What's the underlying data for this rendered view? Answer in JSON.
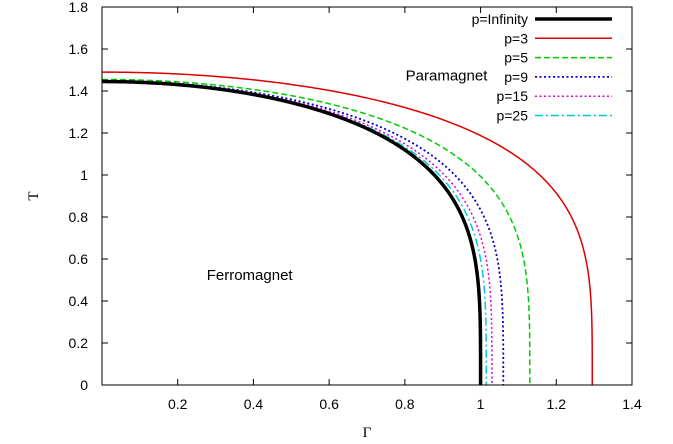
{
  "chart_data": {
    "type": "line",
    "xlabel": "Γ",
    "ylabel": "T",
    "xlim": [
      0,
      1.4
    ],
    "ylim": [
      0,
      1.8
    ],
    "x_ticks": [
      "0.2",
      "0.4",
      "0.6",
      "0.8",
      "1",
      "1.2",
      "1.4"
    ],
    "x_tick_values": [
      0.2,
      0.4,
      0.6,
      0.8,
      1.0,
      1.2,
      1.4
    ],
    "y_ticks": [
      "0",
      "0.2",
      "0.4",
      "0.6",
      "0.8",
      "1",
      "1.2",
      "1.4",
      "1.6",
      "1.8"
    ],
    "y_tick_values": [
      0,
      0.2,
      0.4,
      0.6,
      0.8,
      1.0,
      1.2,
      1.4,
      1.6,
      1.8
    ],
    "grid": false,
    "legend_position": "top-right",
    "annotations": [
      {
        "text": "Paramagnet",
        "x": 0.91,
        "y": 1.45
      },
      {
        "text": "Ferromagnet",
        "x": 0.39,
        "y": 0.5
      }
    ],
    "series": [
      {
        "name": "p=Infinity",
        "color": "#000000",
        "style": "solid",
        "width": 3.5,
        "T0": 1.445,
        "Gc": 1.0,
        "x": [
          0,
          0.1,
          0.2,
          0.3,
          0.4,
          0.5,
          0.6,
          0.7,
          0.8,
          0.85,
          0.9,
          0.95,
          0.98,
          1.0,
          1.0
        ],
        "y": [
          1.445,
          1.44,
          1.421,
          1.389,
          1.344,
          1.282,
          1.201,
          1.095,
          0.952,
          0.858,
          0.742,
          0.585,
          0.439,
          0.2,
          0
        ]
      },
      {
        "name": "p=3",
        "color": "#dd0000",
        "style": "solid",
        "width": 1.5,
        "T0": 1.49,
        "Gc": 1.295,
        "x": [
          0,
          0.2,
          0.4,
          0.6,
          0.8,
          1.0,
          1.1,
          1.2,
          1.25,
          1.28,
          1.295,
          1.295
        ],
        "y": [
          1.49,
          1.472,
          1.417,
          1.323,
          1.183,
          0.981,
          0.847,
          0.657,
          0.52,
          0.39,
          0.2,
          0
        ]
      },
      {
        "name": "p=5",
        "color": "#00cc00",
        "style": "dashed",
        "width": 1.5,
        "T0": 1.455,
        "Gc": 1.13,
        "x": [
          0,
          0.2,
          0.4,
          0.6,
          0.8,
          0.9,
          1.0,
          1.05,
          1.1,
          1.13,
          1.13
        ],
        "y": [
          1.455,
          1.432,
          1.363,
          1.243,
          1.06,
          0.93,
          0.752,
          0.634,
          0.465,
          0.2,
          0
        ]
      },
      {
        "name": "p=9",
        "color": "#0000cc",
        "style": "dotted",
        "width": 1.8,
        "T0": 1.448,
        "Gc": 1.06,
        "x": [
          0,
          0.2,
          0.4,
          0.6,
          0.8,
          0.9,
          0.95,
          1.0,
          1.04,
          1.06,
          1.06
        ],
        "y": [
          1.448,
          1.422,
          1.344,
          1.206,
          0.988,
          0.829,
          0.73,
          0.597,
          0.44,
          0.2,
          0
        ]
      },
      {
        "name": "p=15",
        "color": "#dd00dd",
        "style": "dotted",
        "width": 1.5,
        "T0": 1.446,
        "Gc": 1.03,
        "x": [
          0,
          0.2,
          0.4,
          0.6,
          0.8,
          0.9,
          0.95,
          1.0,
          1.02,
          1.03,
          1.03
        ],
        "y": [
          1.446,
          1.418,
          1.335,
          1.185,
          0.945,
          0.77,
          0.658,
          0.5,
          0.4,
          0.2,
          0
        ]
      },
      {
        "name": "p=25",
        "color": "#00cccc",
        "style": "dashdot",
        "width": 1.5,
        "T0": 1.445,
        "Gc": 1.015,
        "x": [
          0,
          0.2,
          0.4,
          0.6,
          0.8,
          0.9,
          0.95,
          0.99,
          1.01,
          1.015,
          1.015
        ],
        "y": [
          1.445,
          1.417,
          1.331,
          1.177,
          0.93,
          0.748,
          0.631,
          0.5,
          0.37,
          0.2,
          0
        ]
      }
    ]
  }
}
